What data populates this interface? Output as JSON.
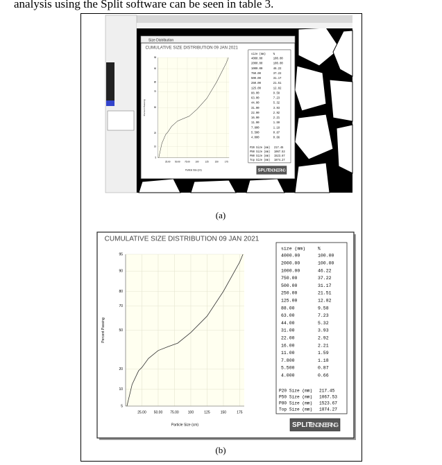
{
  "intro_text": "analysis using the Split software can be seen in table 3.",
  "screenshot_a": {
    "window_title": "Size Distribution"
  },
  "captions": [
    "(a)",
    "(b)"
  ],
  "logo": {
    "left": "SPLIT",
    "right": "ENGINEERING"
  },
  "chart_data": {
    "type": "line",
    "title": "CUMULATIVE SIZE DISTRIBUTION 09 JAN 2021",
    "x_label": "Particle Size (cm)",
    "y_label": "Percent Passing",
    "x": [
      2,
      10,
      20,
      25,
      35,
      50,
      65,
      80,
      100,
      125,
      150,
      175,
      180
    ],
    "values": [
      5,
      12,
      19,
      21,
      27,
      33,
      36,
      39,
      48,
      62,
      80,
      93,
      95
    ],
    "color": "#333333",
    "xlim": [
      0,
      182
    ],
    "xticks": [
      {
        "value": 25,
        "label": "25.00"
      },
      {
        "value": 50,
        "label": "50.00"
      },
      {
        "value": 75,
        "label": "75.00"
      },
      100,
      125,
      150,
      175
    ],
    "ylim": [
      5,
      95
    ],
    "yticks": [
      5,
      10,
      20,
      50,
      70,
      80,
      90,
      95
    ],
    "yscale": "probability",
    "grid": true,
    "table": {
      "headers": [
        "size (mm)",
        "%"
      ],
      "rows": [
        [
          "4000.00",
          "100.00"
        ],
        [
          "2000.00",
          "100.00"
        ],
        [
          "1000.00",
          "46.22"
        ],
        [
          "750.00",
          "37.22"
        ],
        [
          "500.00",
          "31.17"
        ],
        [
          "250.00",
          "21.51"
        ],
        [
          "125.00",
          "12.82"
        ],
        [
          "88.00",
          "9.58"
        ],
        [
          "63.00",
          "7.23"
        ],
        [
          "44.00",
          "5.32"
        ],
        [
          "31.00",
          "3.93"
        ],
        [
          "22.00",
          "2.92"
        ],
        [
          "16.00",
          "2.21"
        ],
        [
          "11.00",
          "1.59"
        ],
        [
          "7.800",
          "1.18"
        ],
        [
          "5.500",
          "0.87"
        ],
        [
          "4.000",
          "0.66"
        ]
      ]
    },
    "stats": [
      [
        "P20 Size (mm)",
        "217.45"
      ],
      [
        "P50 Size (mm)",
        "1067.53"
      ],
      [
        "P80 Size (mm)",
        "1523.67"
      ],
      [
        "Top Size (mm)",
        "1874.27"
      ]
    ]
  }
}
